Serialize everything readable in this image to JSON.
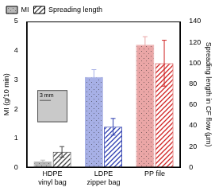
{
  "chart_data": {
    "type": "bar",
    "categories": [
      [
        "HDPE",
        "vinyl bag"
      ],
      [
        "LDPE",
        "zipper bag"
      ],
      [
        "PP file"
      ]
    ],
    "series": [
      {
        "name": "MI",
        "values": [
          0.2,
          3.1,
          4.2
        ],
        "errors": [
          0.05,
          0.25,
          0.28
        ],
        "colors": [
          "#b8b8b8",
          "#a7b0e6",
          "#eaa6a6"
        ]
      },
      {
        "name": "Spreading length",
        "axis": "y2",
        "values": [
          15,
          39,
          100
        ],
        "errors": [
          5,
          8,
          22
        ],
        "colors": [
          "#444444",
          "#2f3fb0",
          "#d02424"
        ]
      }
    ],
    "y_label": "MI (g/10 min)",
    "y2_label": "Spreading length in CF flow (μm)",
    "ylim": [
      0,
      5
    ],
    "yticks": [
      0,
      1,
      2,
      3,
      4,
      5
    ],
    "y2lim": [
      0,
      140
    ],
    "y2ticks": [
      0,
      20,
      40,
      60,
      80,
      100,
      120,
      140
    ],
    "grid": false,
    "legend": "top-left",
    "annotations": [
      "3 mm"
    ]
  }
}
